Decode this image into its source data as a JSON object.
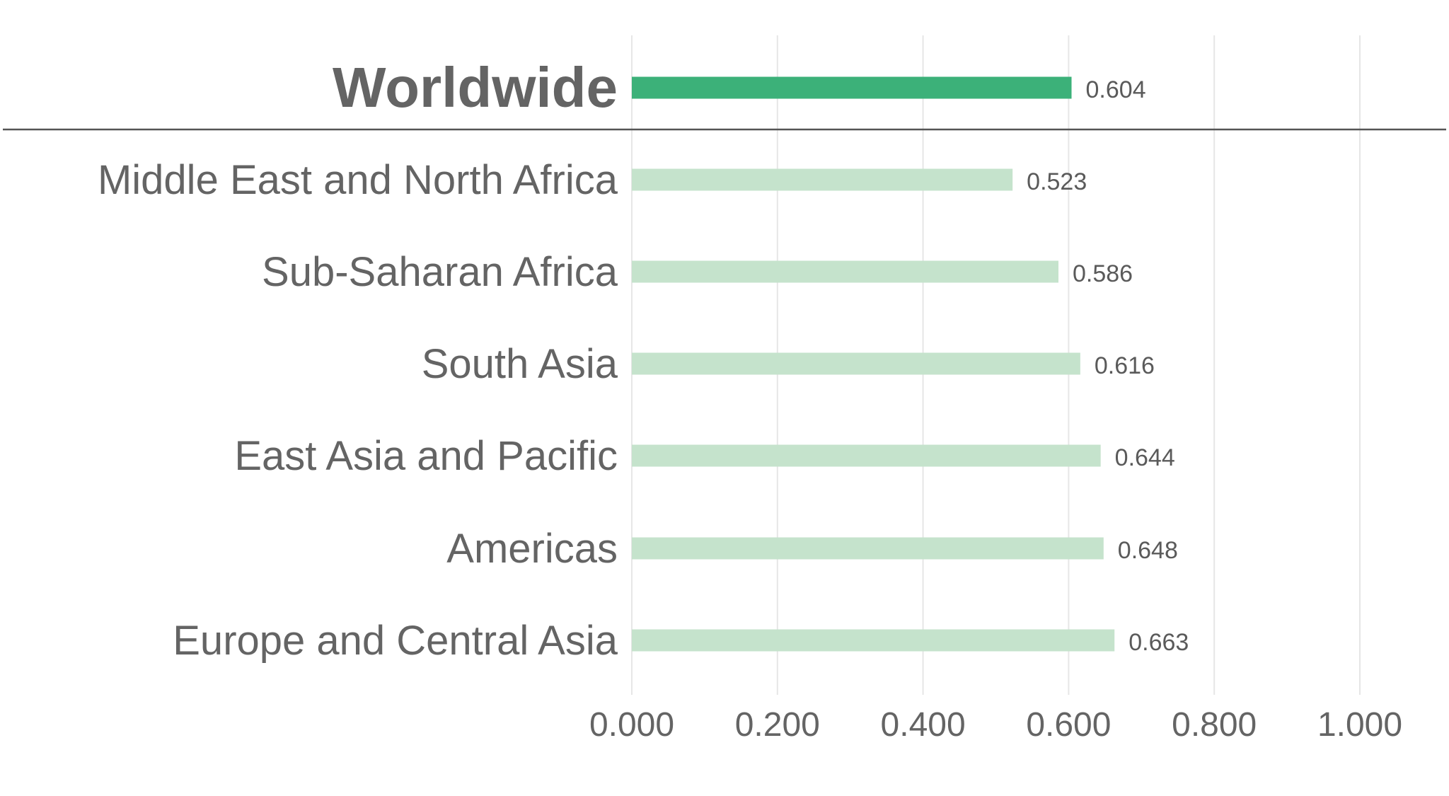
{
  "chart_data": {
    "type": "bar",
    "orientation": "horizontal",
    "categories": [
      "Worldwide",
      "Middle East and North Africa",
      "Sub-Saharan Africa",
      "South Asia",
      "East Asia and Pacific",
      "Americas",
      "Europe and Central Asia"
    ],
    "values": [
      0.604,
      0.523,
      0.586,
      0.616,
      0.644,
      0.648,
      0.663
    ],
    "value_labels": [
      "0.604",
      "0.523",
      "0.586",
      "0.616",
      "0.644",
      "0.648",
      "0.663"
    ],
    "highlight_category": "Worldwide",
    "x_ticks": [
      "0.000",
      "0.200",
      "0.400",
      "0.600",
      "0.800",
      "1.000"
    ],
    "xlim": [
      0,
      1
    ],
    "grid": true,
    "legend": "none",
    "title": "",
    "xlabel": "",
    "ylabel": "",
    "colors": {
      "highlight_bar": "#3cb179",
      "bar": "#c5e3cc",
      "separator": "#555555",
      "grid": "#e6e6e6",
      "text": "#646464"
    }
  }
}
